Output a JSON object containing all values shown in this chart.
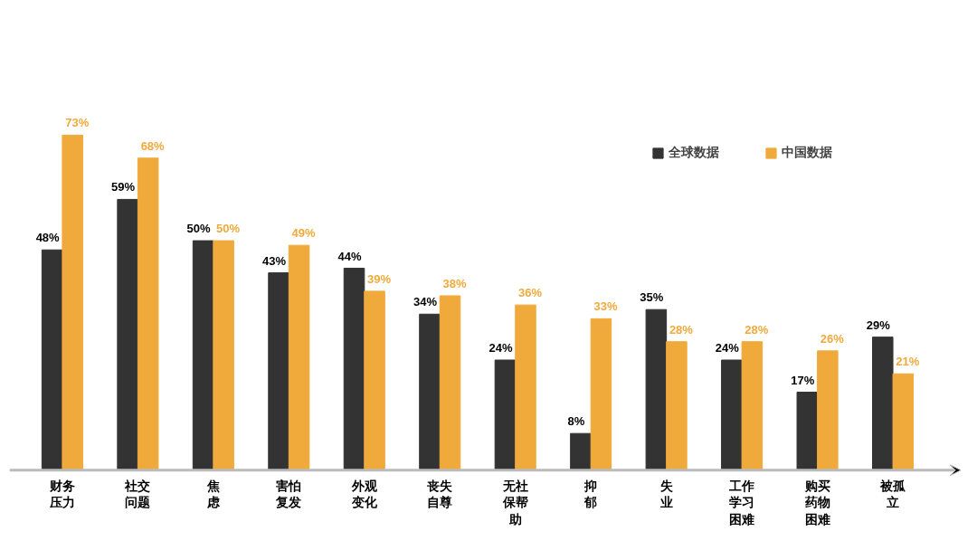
{
  "chart_data": {
    "type": "bar",
    "categories": [
      "财务压力",
      "社交问题",
      "焦虑",
      "害怕复发",
      "外观变化",
      "丧失自尊",
      "无社保帮助",
      "抑郁",
      "失业",
      "工作学习困难",
      "购买药物困难",
      "被孤立"
    ],
    "series": [
      {
        "name": "全球数据",
        "color": "#333333",
        "values": [
          48,
          59,
          50,
          43,
          44,
          34,
          24,
          8,
          35,
          24,
          17,
          29
        ],
        "value_labels": [
          "48%",
          "59%",
          "50%",
          "43%",
          "44%",
          "34%",
          "24%",
          "8%",
          "35%",
          "24%",
          "17%",
          "29%"
        ]
      },
      {
        "name": "中国数据",
        "color": "#f0aa3c",
        "values": [
          73,
          68,
          50,
          49,
          39,
          38,
          36,
          33,
          28,
          28,
          26,
          21
        ],
        "value_labels": [
          "73%",
          "68%",
          "50%",
          "49%",
          "39%",
          "38%",
          "36%",
          "33%",
          "28%",
          "28%",
          "26%",
          "21%"
        ]
      }
    ],
    "legend": "top right",
    "grid": false
  }
}
